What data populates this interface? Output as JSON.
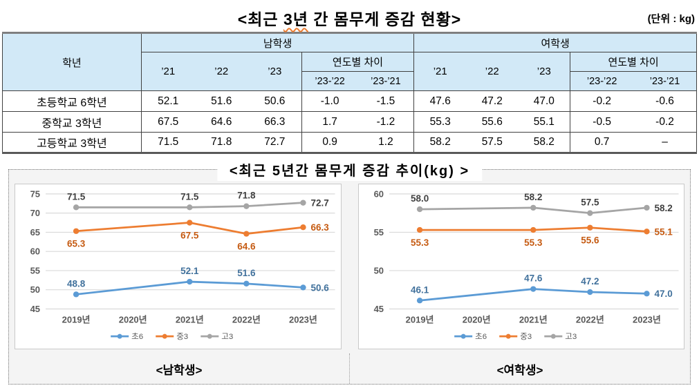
{
  "page": {
    "title_part1": "<최근 ",
    "title_highlight": "3년",
    "title_part2": " 간 몸무게 증감 현황>",
    "unit_note": "(단위 : kg)",
    "section2_title": "<최근 5년간 몸무게 증감 추이(kg) >"
  },
  "table": {
    "col_header": "학년",
    "groups": [
      "남학생",
      "여학생"
    ],
    "year_cols": [
      "’21",
      "’22",
      "’23"
    ],
    "diff_header": "연도별 차이",
    "diff_cols": [
      "’23-’22",
      "’23-’21"
    ],
    "rows": [
      {
        "label": "초등학교 6학년",
        "male": [
          "52.1",
          "51.6",
          "50.6",
          "-1.0",
          "-1.5"
        ],
        "female": [
          "47.6",
          "47.2",
          "47.0",
          "-0.2",
          "-0.6"
        ]
      },
      {
        "label": "중학교 3학년",
        "male": [
          "67.5",
          "64.6",
          "66.3",
          "1.7",
          "-1.2"
        ],
        "female": [
          "55.3",
          "55.6",
          "55.1",
          "-0.5",
          "-0.2"
        ]
      },
      {
        "label": "고등학교 3학년",
        "male": [
          "71.5",
          "71.8",
          "72.7",
          "0.9",
          "1.2"
        ],
        "female": [
          "58.2",
          "57.5",
          "58.2",
          "0.7",
          "–"
        ]
      }
    ]
  },
  "chart_data": [
    {
      "type": "line",
      "title": "남학생",
      "x": [
        "2019년",
        "2020년",
        "2021년",
        "2022년",
        "2023년"
      ],
      "ylim": [
        45,
        75
      ],
      "yticks": [
        75,
        70,
        65,
        60,
        55,
        50,
        45
      ],
      "grid": true,
      "legend_position": "bottom",
      "note": "2020 has no data point; line connects 2019 directly to 2021",
      "series": [
        {
          "name": "초6",
          "color": "#5B9BD5",
          "label_color": "#41719C",
          "label_pos": "above",
          "values": [
            "48.8",
            null,
            "52.1",
            "51.6",
            "50.6"
          ]
        },
        {
          "name": "중3",
          "color": "#ED7D31",
          "label_color": "#C55A11",
          "label_pos": "below",
          "values": [
            "65.3",
            null,
            "67.5",
            "64.6",
            "66.3"
          ]
        },
        {
          "name": "고3",
          "color": "#A5A5A5",
          "label_color": "#404040",
          "label_pos": "above",
          "values": [
            "71.5",
            null,
            "71.5",
            "71.8",
            "72.7"
          ]
        }
      ]
    },
    {
      "type": "line",
      "title": "여학생",
      "x": [
        "2019년",
        "2020년",
        "2021년",
        "2022년",
        "2023년"
      ],
      "ylim": [
        45,
        60
      ],
      "yticks": [
        60,
        55,
        50,
        45
      ],
      "grid": true,
      "legend_position": "bottom",
      "note": "2020 has no data point; line connects 2019 directly to 2021",
      "series": [
        {
          "name": "초6",
          "color": "#5B9BD5",
          "label_color": "#41719C",
          "label_pos": "above",
          "values": [
            "46.1",
            null,
            "47.6",
            "47.2",
            "47.0"
          ]
        },
        {
          "name": "중3",
          "color": "#ED7D31",
          "label_color": "#C55A11",
          "label_pos": "below",
          "values": [
            "55.3",
            null,
            "55.3",
            "55.6",
            "55.1"
          ]
        },
        {
          "name": "고3",
          "color": "#A5A5A5",
          "label_color": "#404040",
          "label_pos": "above",
          "values": [
            "58.0",
            null,
            "58.2",
            "57.5",
            "58.2"
          ]
        }
      ]
    }
  ],
  "captions": [
    "<남학생>",
    "<여학생>"
  ],
  "colors": {
    "table_header_bg": "#d2e9f7",
    "series_blue": "#5B9BD5",
    "series_orange": "#ED7D31",
    "series_gray": "#A5A5A5",
    "axis_text": "#595959",
    "gridline": "#d9d9d9"
  }
}
